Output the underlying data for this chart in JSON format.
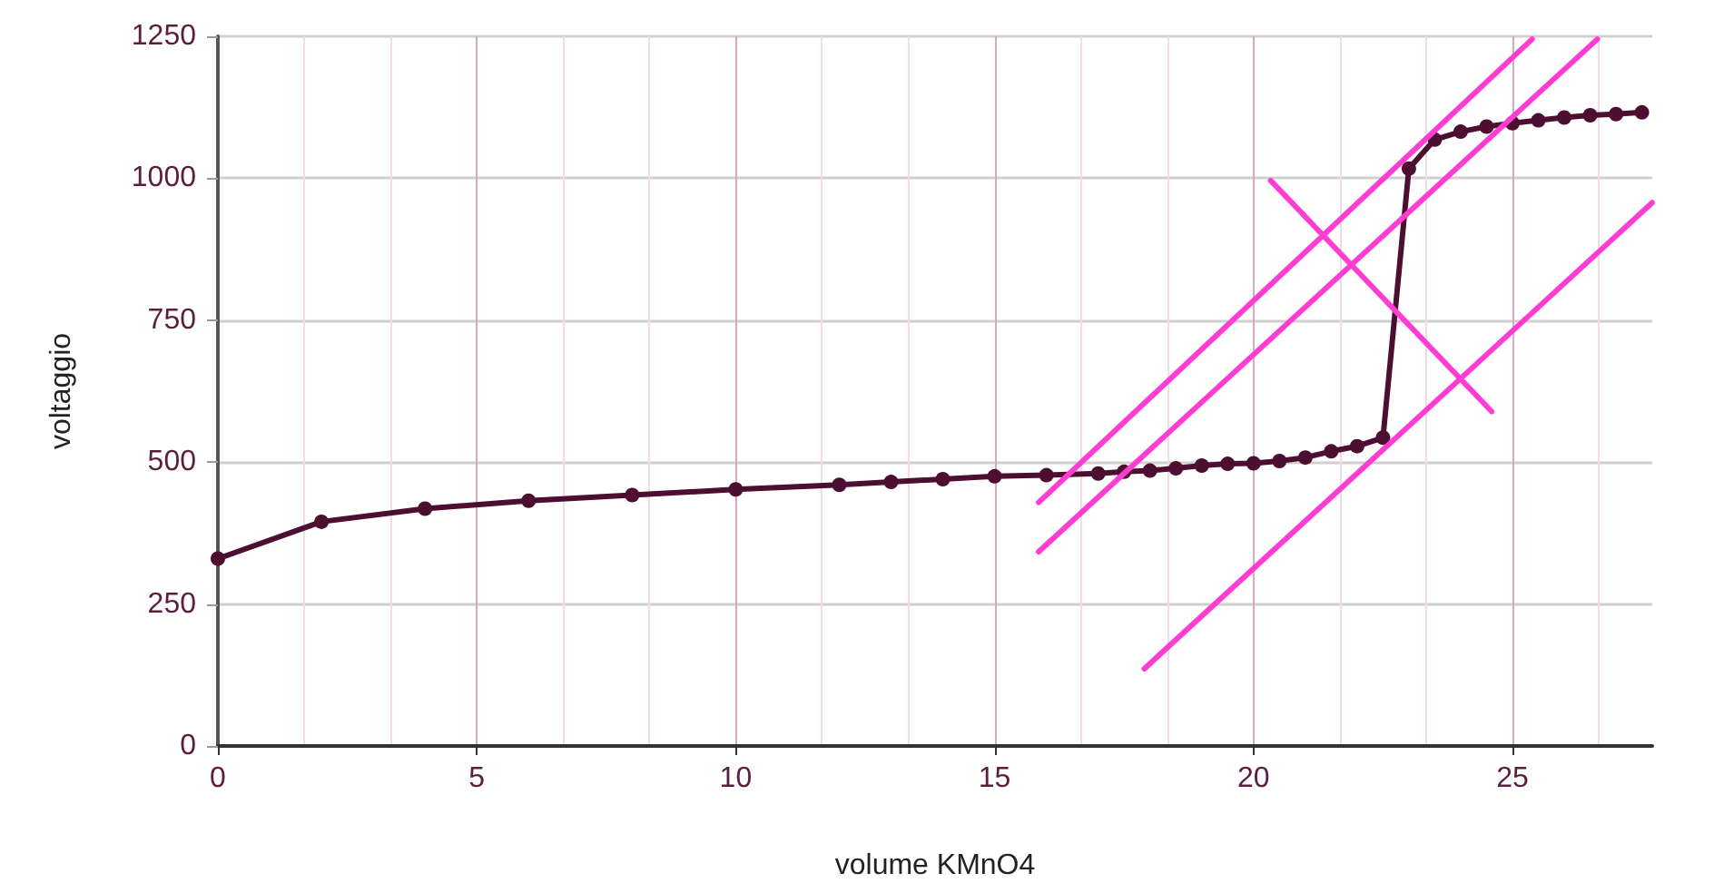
{
  "chart_data": {
    "type": "line",
    "xlabel": "volume KMnO4",
    "ylabel": "voltaggio",
    "xlim": [
      0,
      27.7
    ],
    "xticks": [
      0,
      5,
      10,
      15,
      20,
      25
    ],
    "ylim": [
      0,
      1250
    ],
    "yticks": [
      0,
      250,
      500,
      750,
      1000,
      1250
    ],
    "grid": true,
    "marker": "circle",
    "line_style": "solid",
    "series": [
      {
        "color": "#4d0f31",
        "x": [
          0,
          2,
          4,
          6,
          8,
          10,
          12,
          13,
          14,
          15,
          16,
          17,
          17.5,
          18,
          18.5,
          19,
          19.5,
          20,
          20.5,
          21,
          21.5,
          22,
          22.5,
          23,
          23.5,
          24,
          24.5,
          25,
          25.5,
          26,
          26.5,
          27,
          27.5
        ],
        "values": [
          330,
          395,
          418,
          432,
          442,
          452,
          460,
          465,
          470,
          475,
          477,
          480,
          483,
          485,
          489,
          494,
          497,
          498,
          502,
          508,
          519,
          528,
          543,
          1017,
          1068,
          1082,
          1091,
          1097,
          1102,
          1107,
          1111,
          1113,
          1116
        ]
      },
      {
        "color": "#ff3dd2",
        "marker": "none",
        "x": [
          15.85,
          25.38
        ],
        "values": [
          429,
          1245
        ]
      },
      {
        "color": "#ff3dd2",
        "marker": "none",
        "x": [
          15.85,
          26.64
        ],
        "values": [
          342,
          1245
        ]
      },
      {
        "color": "#ff3dd2",
        "marker": "none",
        "x": [
          17.89,
          27.7
        ],
        "values": [
          136,
          957
        ]
      },
      {
        "color": "#ff3dd2",
        "marker": "none",
        "x": [
          20.33,
          24.6
        ],
        "values": [
          996,
          589
        ]
      }
    ]
  }
}
